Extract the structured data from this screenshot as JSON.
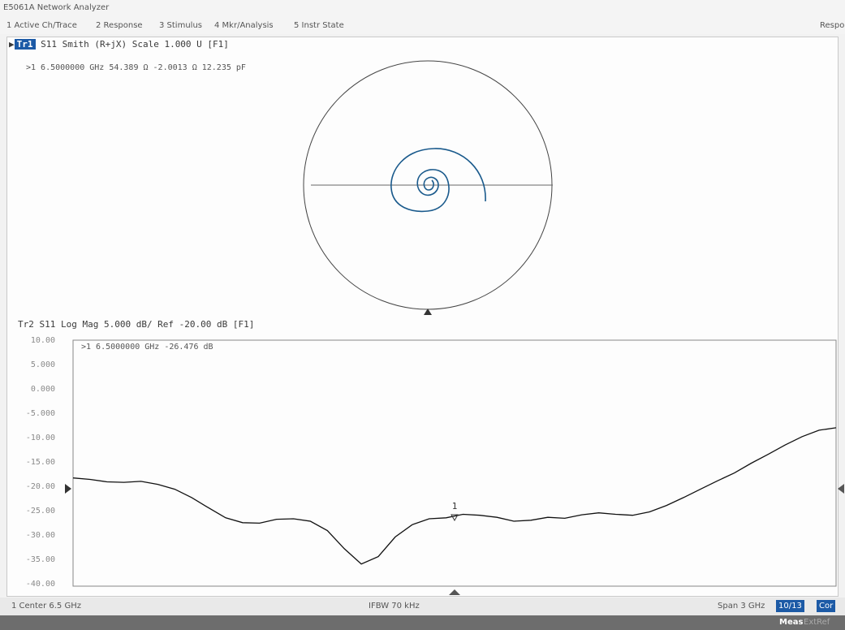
{
  "window": {
    "title": "E5061A Network Analyzer"
  },
  "menu": {
    "items": [
      {
        "label": "1 Active Ch/Trace"
      },
      {
        "label": "2 Response"
      },
      {
        "label": "3 Stimulus"
      },
      {
        "label": "4 Mkr/Analysis"
      },
      {
        "label": "5 Instr State"
      }
    ],
    "right_label": "Respo"
  },
  "trace1": {
    "id": "Tr1",
    "header": "S11 Smith (R+jX) Scale 1.000 U [F1]",
    "marker": ">1  6.5000000 GHz  54.389 Ω  -2.0013 Ω  12.235 pF"
  },
  "trace2": {
    "header": "Tr2 S11 Log Mag 5.000 dB/ Ref -20.00 dB [F1]",
    "marker": ">1  6.5000000 GHz  -26.476 dB",
    "marker_label": "1",
    "yticks": [
      "10.00",
      "5.000",
      "0.000",
      "-5.000",
      "-10.00",
      "-15.00",
      "-20.00",
      "-25.00",
      "-30.00",
      "-35.00",
      "-40.00"
    ]
  },
  "chart_data": {
    "type": "line",
    "ylabel": "",
    "xlabel": "",
    "ylim": [
      -40,
      10
    ],
    "grid": false,
    "series": [
      {
        "y": [
          -18.0,
          -18.3,
          -18.8,
          -18.9,
          -18.7,
          -19.3,
          -20.3,
          -22.0,
          -24.1,
          -26.1,
          -27.1,
          -27.2,
          -26.4,
          -26.3,
          -26.8,
          -28.7,
          -32.4,
          -35.5,
          -34.0,
          -30.0,
          -27.5,
          -26.3,
          -26.1,
          -25.4,
          -25.6,
          -26.0,
          -26.8,
          -26.6,
          -26.0,
          -26.2,
          -25.5,
          -25.1,
          -25.4,
          -25.6,
          -24.9,
          -23.6,
          -22.0,
          -20.3,
          -18.6,
          -17.0,
          -15.0,
          -13.2,
          -11.3,
          -9.6,
          -8.3,
          -7.8
        ]
      }
    ]
  },
  "status": {
    "center": "1  Center 6.5 GHz",
    "ifbw": "IFBW 70 kHz",
    "span": "Span 3 GHz",
    "btn1": "10/13",
    "btn2": "Cor"
  },
  "bottom": {
    "meas": "Meas",
    "ext": "ExtRef"
  }
}
